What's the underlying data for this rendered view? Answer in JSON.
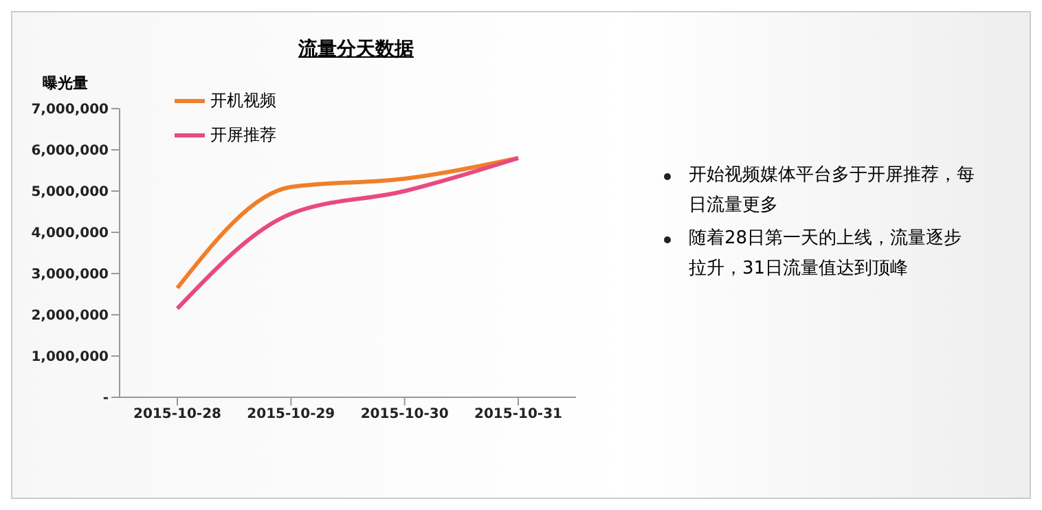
{
  "chart_data": {
    "type": "line",
    "title": "流量分天数据",
    "ylabel": "曝光量",
    "categories": [
      "2015-10-28",
      "2015-10-29",
      "2015-10-30",
      "2015-10-31"
    ],
    "series": [
      {
        "name": "开机视频",
        "color": "#f07f2a",
        "values": [
          2650000,
          5100000,
          5300000,
          5800000
        ]
      },
      {
        "name": "开屏推荐",
        "color": "#e84a80",
        "values": [
          2150000,
          4450000,
          5000000,
          5800000
        ]
      }
    ],
    "ylim": [
      0,
      7000000
    ],
    "yticks": [
      {
        "value": 0,
        "label": "-"
      },
      {
        "value": 1000000,
        "label": "1,000,000"
      },
      {
        "value": 2000000,
        "label": "2,000,000"
      },
      {
        "value": 3000000,
        "label": "3,000,000"
      },
      {
        "value": 4000000,
        "label": "4,000,000"
      },
      {
        "value": 5000000,
        "label": "5,000,000"
      },
      {
        "value": 6000000,
        "label": "6,000,000"
      },
      {
        "value": 7000000,
        "label": "7,000,000"
      }
    ],
    "grid": false,
    "legend": "top left",
    "marker": "none",
    "line_style": "solid",
    "annotations": [
      "开始视频媒体平台多于开屏推荐，每日流量更多",
      "随着28日第一天的上线，流量逐步拉升，31日流量值达到顶峰"
    ]
  }
}
